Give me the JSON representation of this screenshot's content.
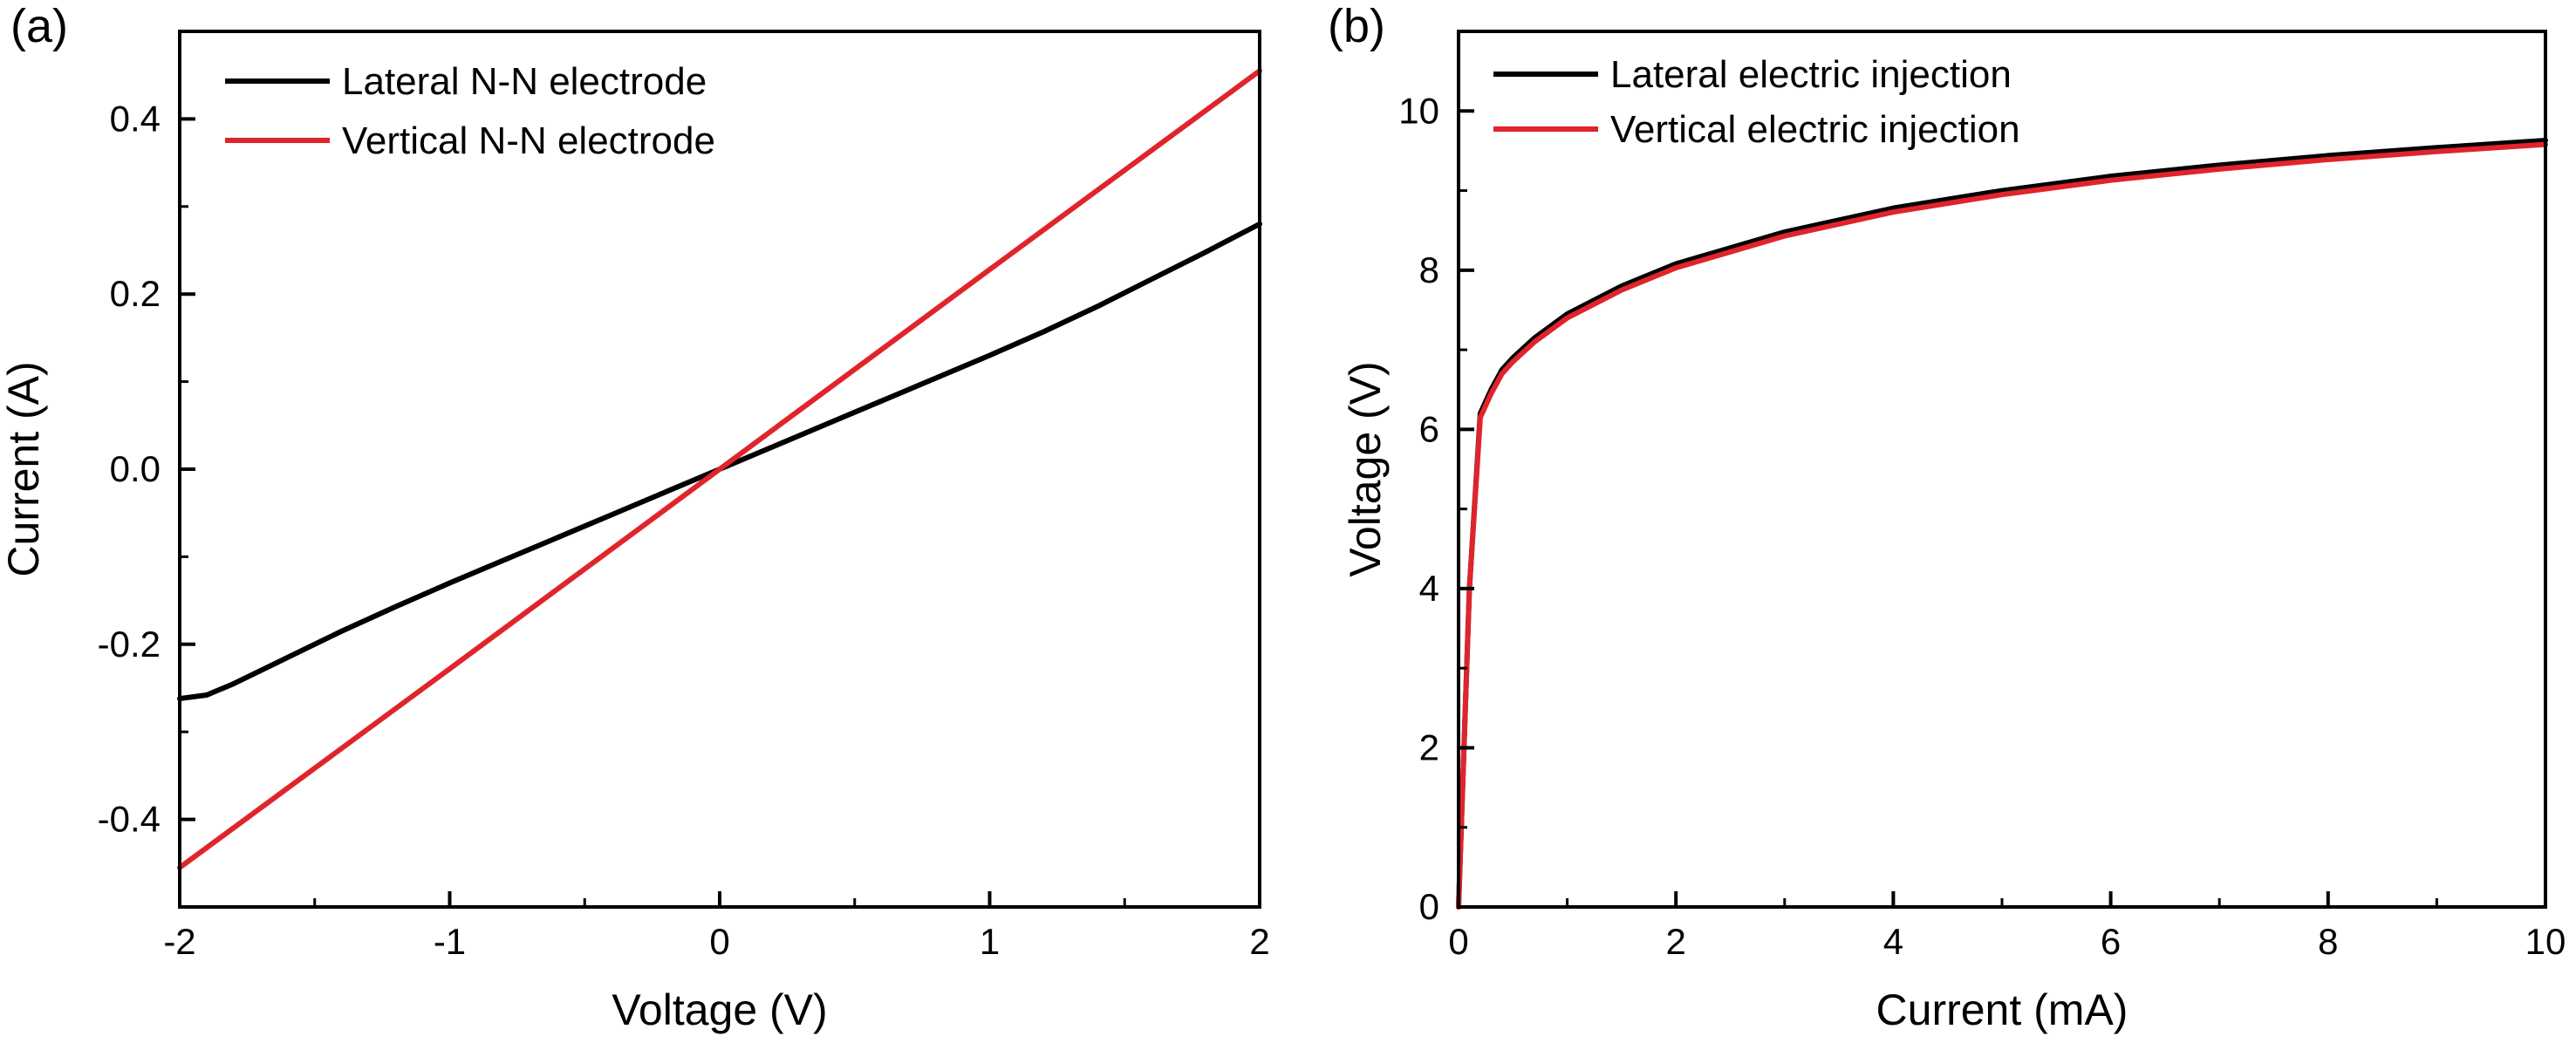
{
  "chart_data": [
    {
      "panel_label": "(a)",
      "type": "line",
      "title": "",
      "xlabel": "Voltage (V)",
      "ylabel": "Current (A)",
      "xlim": [
        -2,
        2
      ],
      "ylim": [
        -0.5,
        0.5
      ],
      "x_ticks": [
        -2,
        -1,
        0,
        1,
        2
      ],
      "x_tick_labels": [
        "-2",
        "-1",
        "0",
        "1",
        "2"
      ],
      "y_ticks": [
        -0.4,
        -0.2,
        0.0,
        0.2,
        0.4
      ],
      "y_tick_labels": [
        "-0.4",
        "-0.2",
        "0.0",
        "0.2",
        "0.4"
      ],
      "legend_position": "top-left",
      "grid": false,
      "series": [
        {
          "name": "Lateral N-N electrode",
          "color": "#000000",
          "x": [
            -2.0,
            -1.9,
            -1.8,
            -1.6,
            -1.4,
            -1.2,
            -1.0,
            -0.8,
            -0.6,
            -0.4,
            -0.2,
            0.0,
            0.2,
            0.4,
            0.6,
            0.8,
            1.0,
            1.2,
            1.4,
            1.6,
            1.8,
            2.0
          ],
          "y": [
            -0.262,
            -0.258,
            -0.245,
            -0.215,
            -0.185,
            -0.157,
            -0.13,
            -0.104,
            -0.078,
            -0.052,
            -0.026,
            0.0,
            0.026,
            0.052,
            0.078,
            0.104,
            0.13,
            0.157,
            0.186,
            0.217,
            0.248,
            0.28
          ]
        },
        {
          "name": "Vertical N-N electrode",
          "color": "#e0242b",
          "x": [
            -2.0,
            -1.0,
            0.0,
            1.0,
            2.0
          ],
          "y": [
            -0.455,
            -0.228,
            0.0,
            0.228,
            0.455
          ]
        }
      ]
    },
    {
      "panel_label": "(b)",
      "type": "line",
      "title": "",
      "xlabel": "Current (mA)",
      "ylabel": "Voltage (V)",
      "xlim": [
        0,
        10
      ],
      "ylim": [
        0,
        11
      ],
      "x_ticks": [
        0,
        2,
        4,
        6,
        8,
        10
      ],
      "x_tick_labels": [
        "0",
        "2",
        "4",
        "6",
        "8",
        "10"
      ],
      "y_ticks": [
        0,
        2,
        4,
        6,
        8,
        10
      ],
      "y_tick_labels": [
        "0",
        "2",
        "4",
        "6",
        "8",
        "10"
      ],
      "legend_position": "top-left",
      "grid": false,
      "series": [
        {
          "name": "Lateral electric injection",
          "color": "#000000",
          "x": [
            0.0,
            0.05,
            0.1,
            0.2,
            0.3,
            0.4,
            0.5,
            0.7,
            1.0,
            1.5,
            2.0,
            3.0,
            4.0,
            5.0,
            6.0,
            7.0,
            8.0,
            9.0,
            10.0
          ],
          "y": [
            0.0,
            2.0,
            4.0,
            6.2,
            6.5,
            6.75,
            6.9,
            7.15,
            7.45,
            7.8,
            8.08,
            8.48,
            8.78,
            9.0,
            9.18,
            9.32,
            9.44,
            9.54,
            9.63
          ]
        },
        {
          "name": "Vertical electric injection",
          "color": "#e0242b",
          "x": [
            0.0,
            0.05,
            0.1,
            0.2,
            0.3,
            0.4,
            0.5,
            0.7,
            1.0,
            1.5,
            2.0,
            3.0,
            4.0,
            5.0,
            6.0,
            7.0,
            8.0,
            9.0,
            10.0
          ],
          "y": [
            0.0,
            2.0,
            4.0,
            6.15,
            6.45,
            6.7,
            6.85,
            7.1,
            7.4,
            7.75,
            8.03,
            8.43,
            8.73,
            8.95,
            9.13,
            9.27,
            9.39,
            9.49,
            9.58
          ]
        }
      ]
    }
  ]
}
